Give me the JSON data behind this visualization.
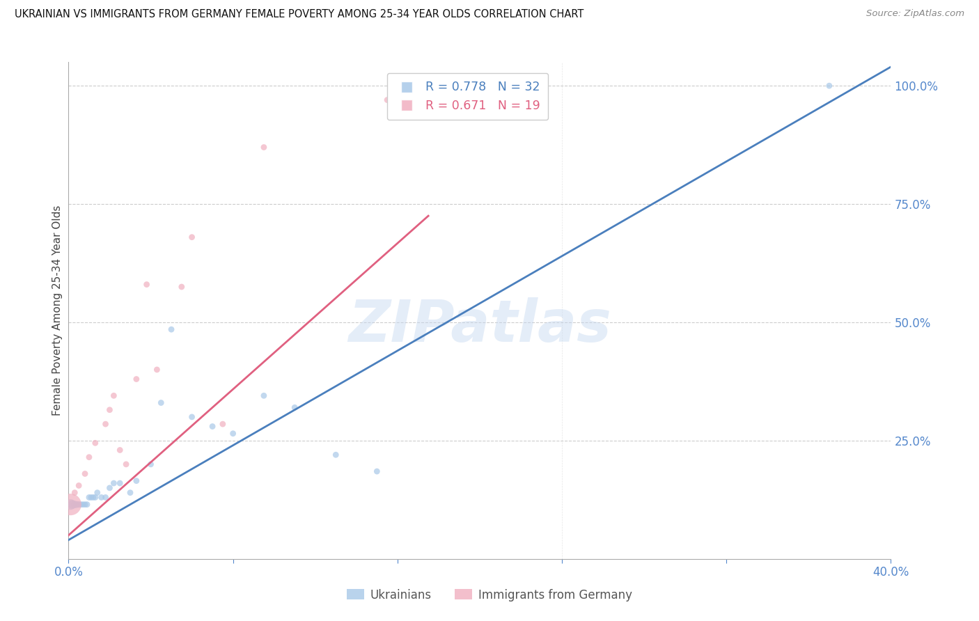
{
  "title": "UKRAINIAN VS IMMIGRANTS FROM GERMANY FEMALE POVERTY AMONG 25-34 YEAR OLDS CORRELATION CHART",
  "source": "Source: ZipAtlas.com",
  "ylabel": "Female Poverty Among 25-34 Year Olds",
  "xlim": [
    0.0,
    0.42
  ],
  "ylim": [
    -0.02,
    1.08
  ],
  "plot_xlim": [
    0.0,
    0.4
  ],
  "plot_ylim": [
    0.0,
    1.05
  ],
  "yticks_right": [
    0.0,
    0.25,
    0.5,
    0.75,
    1.0
  ],
  "ytick_right_labels": [
    "",
    "25.0%",
    "50.0%",
    "75.0%",
    "100.0%"
  ],
  "grid_color": "#cccccc",
  "blue_color": "#a8c8e8",
  "pink_color": "#f0b0c0",
  "blue_line_color": "#4a7fbd",
  "pink_line_color": "#e06080",
  "watermark": "ZIPatlas",
  "label_blue": "Ukrainians",
  "label_pink": "Immigrants from Germany",
  "axis_label_color": "#5588cc",
  "title_color": "#111111",
  "background_color": "#ffffff",
  "ukrainians_x": [
    0.001,
    0.002,
    0.003,
    0.004,
    0.005,
    0.006,
    0.007,
    0.008,
    0.009,
    0.01,
    0.011,
    0.012,
    0.013,
    0.014,
    0.016,
    0.018,
    0.02,
    0.022,
    0.025,
    0.03,
    0.033,
    0.04,
    0.045,
    0.05,
    0.06,
    0.07,
    0.08,
    0.095,
    0.11,
    0.13,
    0.15,
    0.37
  ],
  "ukrainians_y": [
    0.115,
    0.115,
    0.115,
    0.115,
    0.115,
    0.115,
    0.115,
    0.115,
    0.115,
    0.13,
    0.13,
    0.13,
    0.13,
    0.14,
    0.13,
    0.13,
    0.15,
    0.16,
    0.16,
    0.14,
    0.165,
    0.2,
    0.33,
    0.485,
    0.3,
    0.28,
    0.265,
    0.345,
    0.32,
    0.22,
    0.185,
    1.0
  ],
  "ukrainians_size": [
    120,
    80,
    60,
    50,
    45,
    40,
    40,
    40,
    40,
    40,
    40,
    40,
    40,
    40,
    40,
    40,
    40,
    40,
    40,
    40,
    40,
    40,
    40,
    40,
    40,
    40,
    40,
    40,
    40,
    40,
    40,
    40
  ],
  "germany_x": [
    0.001,
    0.003,
    0.005,
    0.008,
    0.01,
    0.013,
    0.018,
    0.02,
    0.022,
    0.025,
    0.028,
    0.033,
    0.038,
    0.043,
    0.055,
    0.06,
    0.075,
    0.095,
    0.155
  ],
  "germany_y": [
    0.115,
    0.14,
    0.155,
    0.18,
    0.215,
    0.245,
    0.285,
    0.315,
    0.345,
    0.23,
    0.2,
    0.38,
    0.58,
    0.4,
    0.575,
    0.68,
    0.285,
    0.87,
    0.97
  ],
  "germany_size": [
    500,
    40,
    40,
    40,
    40,
    40,
    40,
    40,
    40,
    40,
    40,
    40,
    40,
    40,
    40,
    40,
    40,
    40,
    40
  ],
  "blue_line_x": [
    0.0,
    0.4
  ],
  "blue_line_y": [
    0.04,
    1.04
  ],
  "pink_line_x": [
    0.0,
    0.175
  ],
  "pink_line_y": [
    0.05,
    0.725
  ]
}
